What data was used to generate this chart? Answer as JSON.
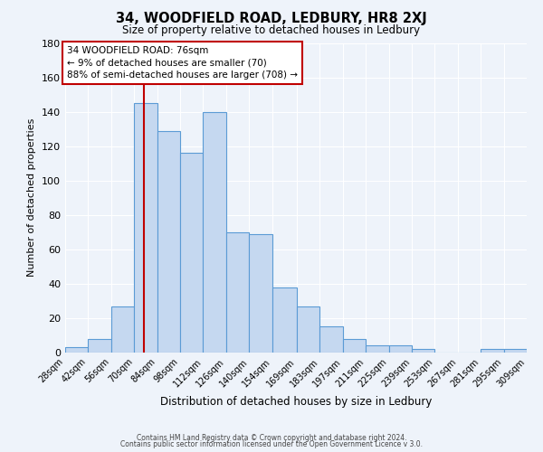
{
  "title": "34, WOODFIELD ROAD, LEDBURY, HR8 2XJ",
  "subtitle": "Size of property relative to detached houses in Ledbury",
  "xlabel": "Distribution of detached houses by size in Ledbury",
  "ylabel": "Number of detached properties",
  "bar_color": "#c5d8f0",
  "bar_edge_color": "#5b9bd5",
  "bg_color": "#eef3fa",
  "grid_color": "white",
  "annotation_box_edge": "#c00000",
  "vline_color": "#c00000",
  "vline_x": 76,
  "annotation_line1": "34 WOODFIELD ROAD: 76sqm",
  "annotation_line2": "← 9% of detached houses are smaller (70)",
  "annotation_line3": "88% of semi-detached houses are larger (708) →",
  "bin_edges": [
    28,
    42,
    56,
    70,
    84,
    98,
    112,
    126,
    140,
    154,
    169,
    183,
    197,
    211,
    225,
    239,
    253,
    267,
    281,
    295,
    309
  ],
  "bar_heights": [
    3,
    8,
    27,
    145,
    129,
    116,
    140,
    70,
    69,
    38,
    27,
    15,
    8,
    4,
    4,
    2,
    0,
    0,
    2,
    2
  ],
  "ylim": [
    0,
    180
  ],
  "yticks": [
    0,
    20,
    40,
    60,
    80,
    100,
    120,
    140,
    160,
    180
  ],
  "footer_line1": "Contains HM Land Registry data © Crown copyright and database right 2024.",
  "footer_line2": "Contains public sector information licensed under the Open Government Licence v 3.0."
}
